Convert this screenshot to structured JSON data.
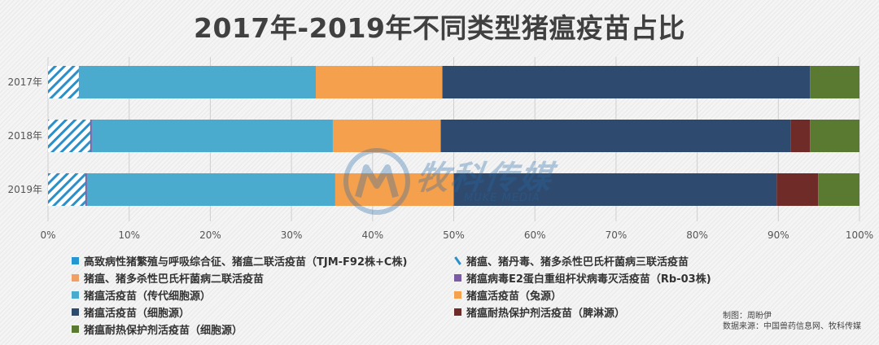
{
  "title": "2017年-2019年不同类型猪瘟疫苗占比",
  "credit": {
    "line1": "制图：周盼伊",
    "line2": "数据来源：中国兽药信息网、牧科传媒"
  },
  "watermark": {
    "text": "牧科传媒",
    "sub": "MUKE MEDIA"
  },
  "colors": {
    "background": "#f4f4f4",
    "gridline": "#cfcfcf",
    "text": "#404040"
  },
  "chart_data": {
    "type": "bar",
    "orientation": "horizontal",
    "stacked": true,
    "percent": true,
    "title": "2017年-2019年不同类型猪瘟疫苗占比",
    "categories": [
      "2017年",
      "2018年",
      "2019年"
    ],
    "x_ticks": [
      "0%",
      "10%",
      "20%",
      "30%",
      "40%",
      "50%",
      "60%",
      "70%",
      "80%",
      "90%",
      "100%"
    ],
    "xlim": [
      0,
      100
    ],
    "grid": true,
    "legend_position": "bottom",
    "series": [
      {
        "name": "高致病性猪繁殖与呼吸综合征、猪瘟二联活疫苗（TJM-F92株+C株)",
        "color": "#2596d0",
        "values": [
          0,
          0,
          0
        ]
      },
      {
        "name": "猪瘟、猪丹毒、猪多杀性巴氏杆菌病三联活疫苗",
        "color": "#2b8fc9",
        "pattern": "hatch",
        "values": [
          3.8,
          5.2,
          4.6
        ]
      },
      {
        "name": "猪瘟、猪多杀性巴氏杆菌病二联活疫苗",
        "color": "#f0a064",
        "values": [
          0,
          0,
          0
        ]
      },
      {
        "name": "猪瘟病毒E2蛋白重组杆状病毒灭活疫苗（Rb-03株)",
        "color": "#7b5aa6",
        "values": [
          0,
          0.2,
          0.2
        ]
      },
      {
        "name": "猪瘟活疫苗（传代细胞源）",
        "color": "#4aabcf",
        "values": [
          29.2,
          29.7,
          30.6
        ]
      },
      {
        "name": "猪瘟活疫苗（兔源）",
        "color": "#f4a04d",
        "values": [
          15.6,
          13.3,
          14.6
        ]
      },
      {
        "name": "猪瘟活疫苗（细胞源）",
        "color": "#2e4a6e",
        "values": [
          45.3,
          43.1,
          39.8
        ]
      },
      {
        "name": "猪瘟耐热保护剂活疫苗（脾淋源）",
        "color": "#6e2b27",
        "values": [
          0,
          2.4,
          5.1
        ]
      },
      {
        "name": "猪瘟耐热保护剂活疫苗（细胞源）",
        "color": "#5b7a31",
        "values": [
          6.1,
          6.1,
          5.1
        ]
      }
    ]
  }
}
